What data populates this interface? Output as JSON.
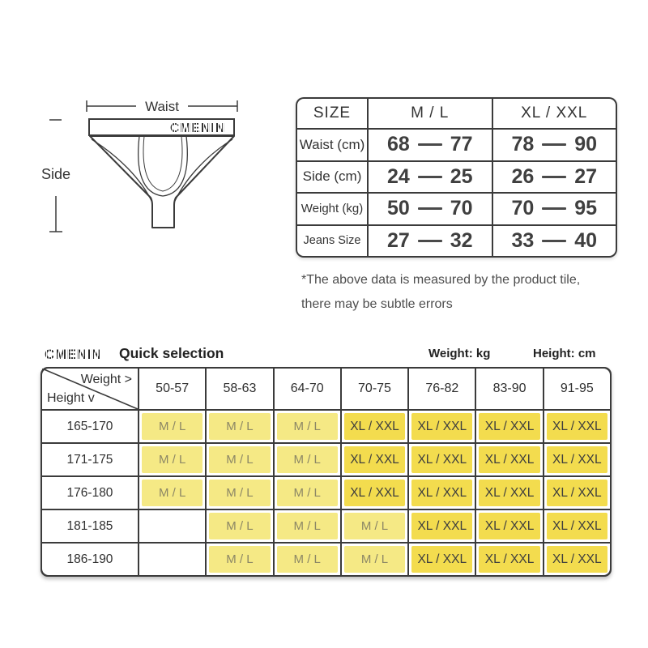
{
  "diagram": {
    "brand": "CMENIN",
    "waist_label": "Waist",
    "side_label": "Side"
  },
  "size_table": {
    "col_headers": [
      "SIZE",
      "M / L",
      "XL / XXL"
    ],
    "rows": [
      {
        "label": "Waist (cm)",
        "ml": {
          "from": "68",
          "to": "77"
        },
        "xl": {
          "from": "78",
          "to": "90"
        }
      },
      {
        "label": "Side (cm)",
        "ml": {
          "from": "24",
          "to": "25"
        },
        "xl": {
          "from": "26",
          "to": "27"
        }
      },
      {
        "label": "Weight (kg)",
        "ml": {
          "from": "50",
          "to": "70"
        },
        "xl": {
          "from": "70",
          "to": "95"
        }
      },
      {
        "label": "Jeans Size",
        "ml": {
          "from": "27",
          "to": "32"
        },
        "xl": {
          "from": "33",
          "to": "40"
        }
      }
    ]
  },
  "note": {
    "line1": "*The above data is measured by the product tile,",
    "line2": "there may be subtle errors"
  },
  "quick_selection": {
    "brand": "CMENIN",
    "title": "Quick selection",
    "weight_unit": "Weight: kg",
    "height_unit": "Height: cm",
    "corner": {
      "weight": "Weight >",
      "height": "Height v"
    },
    "weight_cols": [
      "50-57",
      "58-63",
      "64-70",
      "70-75",
      "76-82",
      "83-90",
      "91-95"
    ],
    "rows": [
      {
        "height": "165-170",
        "cells": [
          "M / L",
          "M / L",
          "M / L",
          "XL / XXL",
          "XL / XXL",
          "XL / XXL",
          "XL / XXL"
        ]
      },
      {
        "height": "171-175",
        "cells": [
          "M / L",
          "M / L",
          "M / L",
          "XL / XXL",
          "XL / XXL",
          "XL / XXL",
          "XL / XXL"
        ]
      },
      {
        "height": "176-180",
        "cells": [
          "M / L",
          "M / L",
          "M / L",
          "XL / XXL",
          "XL / XXL",
          "XL / XXL",
          "XL / XXL"
        ]
      },
      {
        "height": "181-185",
        "cells": [
          "",
          "M / L",
          "M / L",
          "M / L",
          "XL / XXL",
          "XL / XXL",
          "XL / XXL"
        ]
      },
      {
        "height": "186-190",
        "cells": [
          "",
          "M / L",
          "M / L",
          "M / L",
          "XL / XXL",
          "XL / XXL",
          "XL / XXL"
        ]
      }
    ]
  },
  "colors": {
    "line": "#3b3b3b",
    "ml_bg": "#f5e985",
    "xl_bg": "#f3dc4e",
    "ml_text": "#8c8766",
    "xl_text": "#3e3e3e"
  }
}
